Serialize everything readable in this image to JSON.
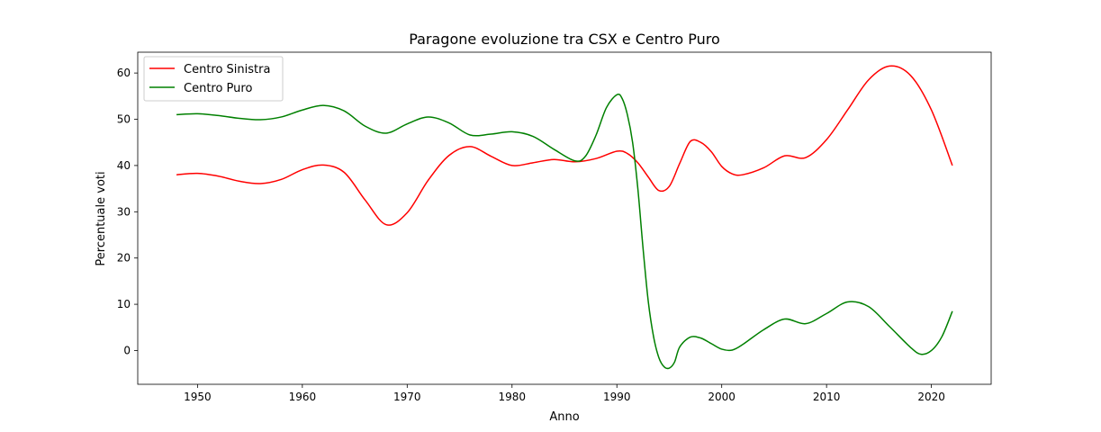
{
  "chart_data": {
    "type": "line",
    "title": "Paragone evoluzione tra CSX e Centro Puro",
    "xlabel": "Anno",
    "ylabel": "Percentuale voti",
    "xlim": [
      1944.3,
      2025.7
    ],
    "ylim": [
      -7.3,
      64.5
    ],
    "xticks": [
      1950,
      1960,
      1970,
      1980,
      1990,
      2000,
      2010,
      2020
    ],
    "yticks": [
      0,
      10,
      20,
      30,
      40,
      50,
      60
    ],
    "grid": false,
    "legend": "top-left",
    "series": [
      {
        "name": "Centro Sinistra",
        "color": "#ff0000",
        "x": [
          1948,
          1950,
          1952,
          1954,
          1956,
          1958,
          1960,
          1962,
          1964,
          1966,
          1968,
          1970,
          1972,
          1974,
          1976,
          1978,
          1980,
          1982,
          1984,
          1986,
          1988,
          1990,
          1991,
          1992,
          1993,
          1994,
          1995,
          1996,
          1997,
          1998,
          1999,
          2000,
          2001,
          2002,
          2004,
          2006,
          2008,
          2010,
          2012,
          2014,
          2016,
          2018,
          2020,
          2022
        ],
        "y": [
          38,
          38.3,
          37.7,
          36.6,
          36.1,
          37,
          39.1,
          40.1,
          38.5,
          32.5,
          27.2,
          29.8,
          36.8,
          42.2,
          44.1,
          42,
          40,
          40.6,
          41.3,
          40.8,
          41.5,
          43.1,
          42.6,
          40.6,
          37.5,
          34.6,
          35.5,
          40.5,
          45.2,
          45,
          43,
          39.8,
          38.2,
          38,
          39.5,
          42.1,
          41.7,
          45.6,
          52,
          58.5,
          61.5,
          59.5,
          52,
          40
        ]
      },
      {
        "name": "Centro Puro",
        "color": "#008000",
        "x": [
          1948,
          1950,
          1952,
          1954,
          1956,
          1958,
          1960,
          1962,
          1964,
          1966,
          1968,
          1970,
          1972,
          1974,
          1976,
          1978,
          1980,
          1982,
          1984,
          1986,
          1987,
          1988,
          1989,
          1990,
          1990.5,
          1991,
          1991.5,
          1992,
          1992.5,
          1993,
          1993.5,
          1994,
          1994.5,
          1995,
          1995.5,
          1996,
          1997,
          1998,
          1999,
          2000,
          2001,
          2002,
          2004,
          2006,
          2008,
          2010,
          2012,
          2014,
          2016,
          2018,
          2019,
          2020,
          2021,
          2022
        ],
        "y": [
          51,
          51.2,
          50.8,
          50.2,
          49.9,
          50.5,
          52,
          53,
          51.8,
          48.5,
          47,
          49,
          50.5,
          49.2,
          46.6,
          46.8,
          47.3,
          46.3,
          43.5,
          41,
          42,
          46.5,
          52.5,
          55.3,
          54.5,
          51,
          45,
          35,
          22,
          10.5,
          3,
          -1.5,
          -3.5,
          -3.8,
          -2.5,
          0.8,
          2.9,
          2.7,
          1.5,
          0.3,
          0.1,
          1.3,
          4.5,
          6.8,
          5.8,
          8,
          10.5,
          9.5,
          5.2,
          0.7,
          -0.8,
          0,
          3,
          8.5
        ]
      }
    ]
  }
}
